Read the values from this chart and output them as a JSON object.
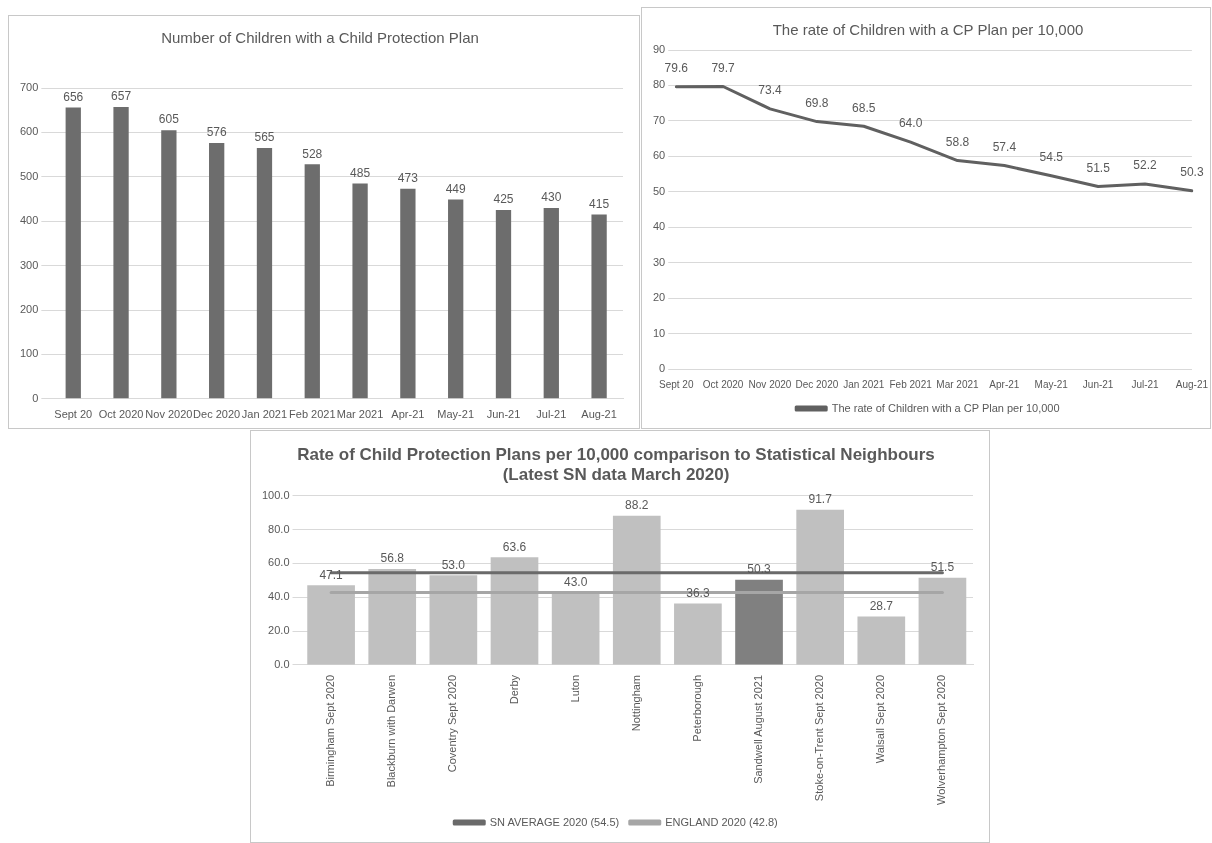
{
  "chart_data": [
    {
      "type": "bar",
      "title": "Number of Children with a Child Protection Plan",
      "categories": [
        "Sept 20",
        "Oct 2020",
        "Nov 2020",
        "Dec 2020",
        "Jan 2021",
        "Feb 2021",
        "Mar 2021",
        "Apr-21",
        "May-21",
        "Jun-21",
        "Jul-21",
        "Aug-21"
      ],
      "values": [
        656,
        657,
        605,
        576,
        565,
        528,
        485,
        473,
        449,
        425,
        430,
        415
      ],
      "color": "#6d6d6d",
      "ylim": [
        0,
        700
      ],
      "yticks": [
        0,
        100,
        200,
        300,
        400,
        500,
        600,
        700
      ],
      "grid": "y",
      "legend": false,
      "data_labels": true
    },
    {
      "type": "line",
      "title": "The rate of Children with a CP Plan per 10,000",
      "categories": [
        "Sept 20",
        "Oct 2020",
        "Nov 2020",
        "Dec 2020",
        "Jan 2021",
        "Feb 2021",
        "Mar 2021",
        "Apr-21",
        "May-21",
        "Jun-21",
        "Jul-21",
        "Aug-21"
      ],
      "series": [
        {
          "name": "The rate of Children with a CP Plan per 10,000",
          "color": "#606060",
          "values": [
            79.6,
            79.7,
            73.4,
            69.8,
            68.5,
            64.0,
            58.8,
            57.4,
            54.5,
            51.5,
            52.2,
            50.3
          ],
          "value_labels": [
            "79.6",
            "79.7",
            "73.4",
            "69.8",
            "68.5",
            "64.0",
            "58.8",
            "57.4",
            "54.5",
            "51.5",
            "52.2",
            "50.3"
          ]
        }
      ],
      "ylim": [
        0,
        90
      ],
      "yticks": [
        0,
        10,
        20,
        30,
        40,
        50,
        60,
        70,
        80,
        90
      ],
      "grid": "y",
      "legend": "bottom",
      "marker": "none",
      "line_style": "solid"
    },
    {
      "type": "bar",
      "title": "Rate of Child Protection Plans per 10,000 comparison to Statistical Neighbours\n(Latest SN data March 2020)",
      "categories": [
        "Birmingham Sept 2020",
        "Blackburn with Darwen",
        "Coventry Sept 2020",
        "Derby",
        "Luton",
        "Nottingham",
        "Peterborough",
        "Sandwell August 2021",
        "Stoke-on-Trent Sept 2020",
        "Walsall Sept 2020",
        "Wolverhampton Sept 2020"
      ],
      "series": [
        {
          "type": "bar",
          "colors": [
            "#c0c0c0",
            "#c0c0c0",
            "#c0c0c0",
            "#c0c0c0",
            "#c0c0c0",
            "#c0c0c0",
            "#c0c0c0",
            "#808080",
            "#c0c0c0",
            "#c0c0c0",
            "#c0c0c0"
          ],
          "values": [
            47.1,
            56.8,
            53.0,
            63.6,
            43.0,
            88.2,
            36.3,
            50.3,
            91.7,
            28.7,
            51.5
          ],
          "value_labels": [
            "47.1",
            "56.8",
            "53.0",
            "63.6",
            "43.0",
            "88.2",
            "36.3",
            "50.3",
            "91.7",
            "28.7",
            "51.5"
          ]
        },
        {
          "type": "line",
          "name": "SN AVERAGE 2020 (54.5)",
          "color": "#6a6a6a",
          "values": [
            54.5,
            54.5,
            54.5,
            54.5,
            54.5,
            54.5,
            54.5,
            54.5,
            54.5,
            54.5,
            54.5
          ]
        },
        {
          "type": "line",
          "name": "ENGLAND 2020 (42.8)",
          "color": "#a6a6a6",
          "values": [
            42.8,
            42.8,
            42.8,
            42.8,
            42.8,
            42.8,
            42.8,
            42.8,
            42.8,
            42.8,
            42.8
          ]
        }
      ],
      "ylim": [
        0,
        100
      ],
      "yticks": [
        {
          "value": 0,
          "label": "0.0"
        },
        {
          "value": 20,
          "label": "20.0"
        },
        {
          "value": 40,
          "label": "40.0"
        },
        {
          "value": 60,
          "label": "60.0"
        },
        {
          "value": 80,
          "label": "80.0"
        },
        {
          "value": 100,
          "label": "100.0"
        }
      ],
      "grid": "y",
      "legend": "bottom",
      "marker": "none",
      "line_style": "solid"
    }
  ]
}
